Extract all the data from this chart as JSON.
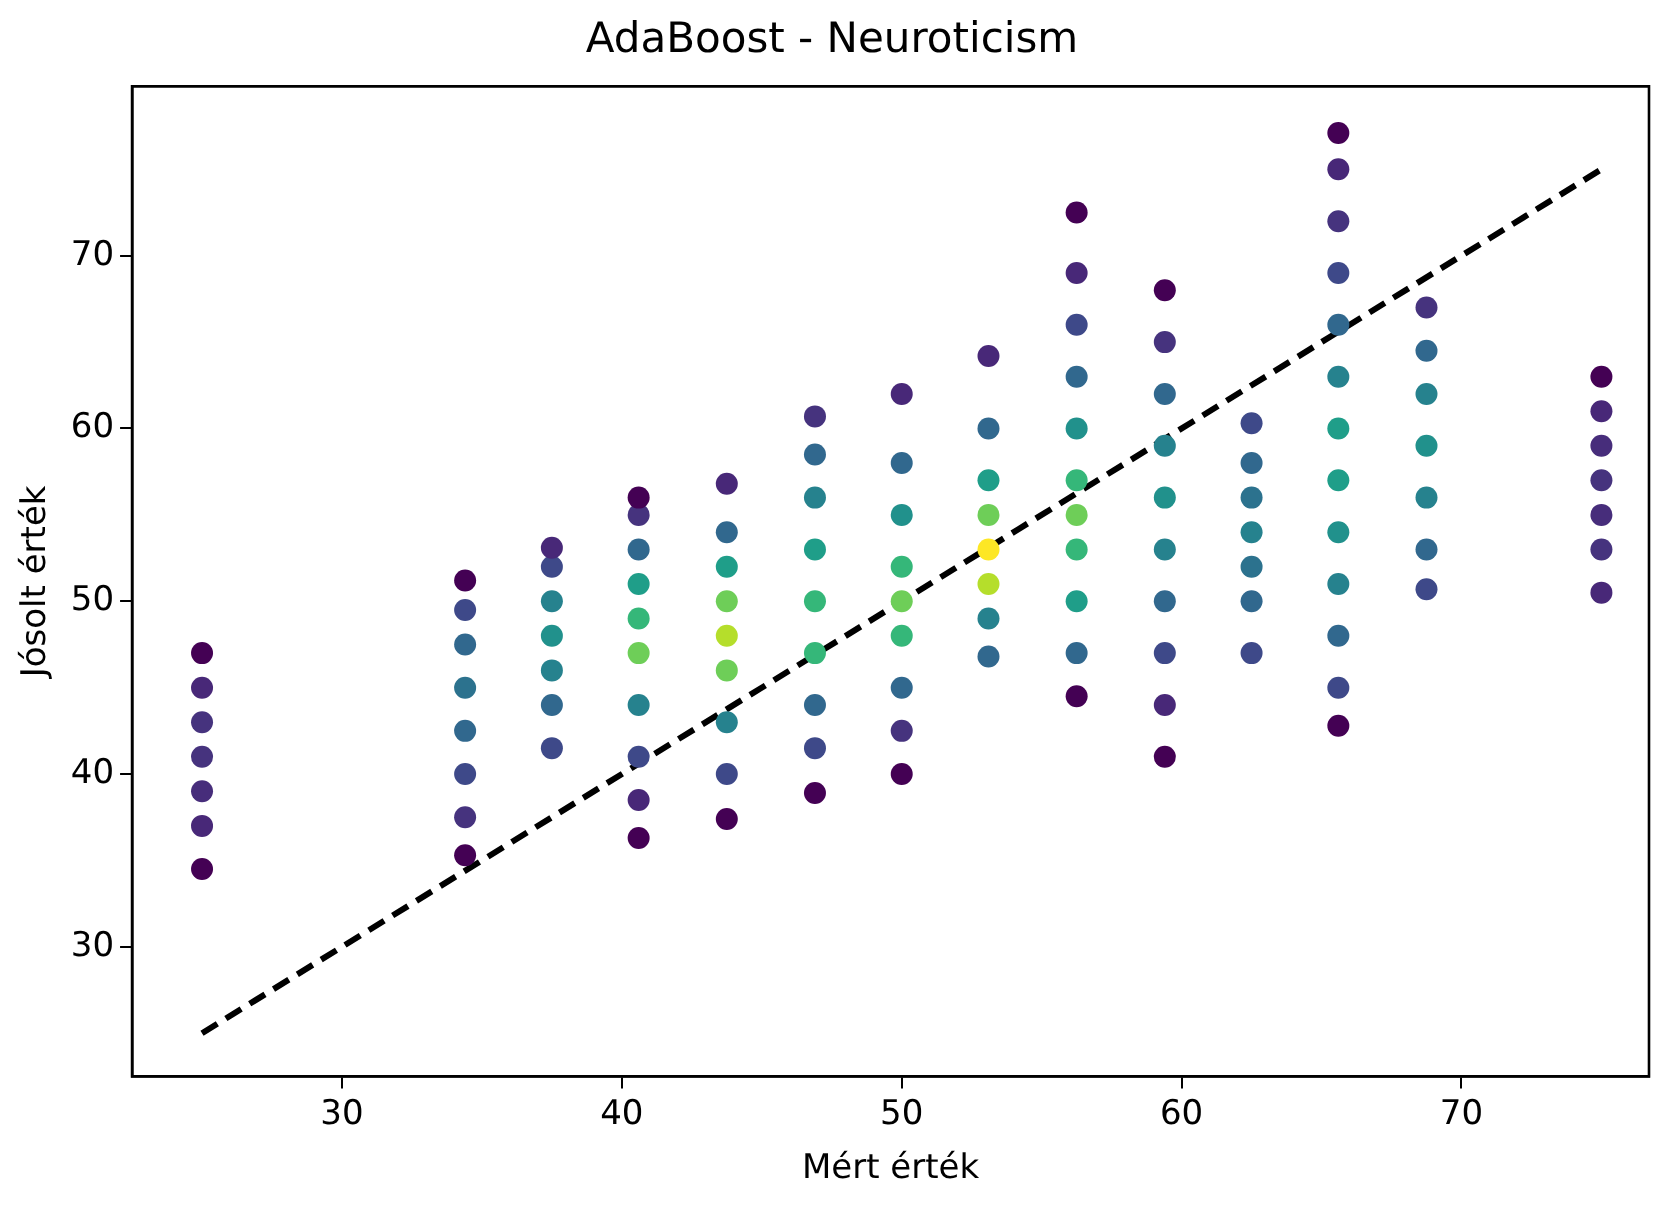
{
  "chart_data": {
    "type": "scatter",
    "title": "AdaBoost - Neuroticism",
    "xlabel": "Mért érték",
    "ylabel": "Jósolt érték",
    "xlim": [
      22.5,
      76.7
    ],
    "ylim": [
      22.5,
      79.8
    ],
    "xticks": [
      30,
      40,
      50,
      60,
      70
    ],
    "yticks": [
      30,
      40,
      50,
      60,
      70
    ],
    "grid": false,
    "legend": false,
    "marker": "circle",
    "series": [
      {
        "x": [
          25,
          25,
          25,
          25,
          25,
          25,
          25
        ],
        "values": [
          34.5,
          37,
          39,
          41,
          43,
          45,
          47
        ],
        "colors": [
          "#440154",
          "#482878",
          "#472d7b",
          "#46337e",
          "#46337e",
          "#482878",
          "#440154"
        ]
      },
      {
        "x": [
          34.4,
          34.4,
          34.4,
          34.4,
          34.4,
          34.4,
          34.4,
          34.4
        ],
        "values": [
          35.3,
          37.5,
          40,
          42.5,
          45,
          47.5,
          49.5,
          51.2
        ],
        "colors": [
          "#440154",
          "#46337e",
          "#3e4989",
          "#31688e",
          "#2c728e",
          "#31688e",
          "#3e4989",
          "#440154"
        ]
      },
      {
        "x": [
          37.5,
          37.5,
          37.5,
          37.5,
          37.5,
          37.5,
          37.5
        ],
        "values": [
          41.5,
          44,
          46,
          48,
          50,
          52,
          53.1
        ],
        "colors": [
          "#3e4989",
          "#31688e",
          "#26828e",
          "#21918c",
          "#26828e",
          "#3e4989",
          "#482878"
        ]
      },
      {
        "x": [
          40.6,
          40.6,
          40.6,
          40.6,
          40.6,
          40.6,
          40.6,
          40.6,
          40.6,
          40.6
        ],
        "values": [
          36.3,
          38.5,
          41,
          44,
          47,
          49,
          51,
          53,
          55,
          56
        ],
        "colors": [
          "#440154",
          "#482878",
          "#3e4989",
          "#26828e",
          "#6ece58",
          "#35b779",
          "#1f9e89",
          "#31688e",
          "#46337e",
          "#440154"
        ]
      },
      {
        "x": [
          43.75,
          43.75,
          43.75,
          43.75,
          43.75,
          43.75,
          43.75,
          43.75,
          43.75
        ],
        "values": [
          37.4,
          40,
          43,
          46,
          48,
          50,
          52,
          54,
          56.8
        ],
        "colors": [
          "#440154",
          "#3e4989",
          "#26828e",
          "#6ece58",
          "#b5de2b",
          "#6ece58",
          "#1f9e89",
          "#31688e",
          "#482878"
        ]
      },
      {
        "x": [
          46.9,
          46.9,
          46.9,
          46.9,
          46.9,
          46.9,
          46.9,
          46.9,
          46.9
        ],
        "values": [
          38.9,
          41.5,
          44,
          47,
          50,
          53,
          56,
          58.5,
          60.7
        ],
        "colors": [
          "#440154",
          "#3e4989",
          "#31688e",
          "#35b779",
          "#35b779",
          "#1f9e89",
          "#26828e",
          "#31688e",
          "#46337e"
        ]
      },
      {
        "x": [
          50,
          50,
          50,
          50,
          50,
          50,
          50,
          50,
          50
        ],
        "values": [
          40,
          42.5,
          45,
          48,
          50,
          52,
          55,
          58,
          62
        ],
        "colors": [
          "#440154",
          "#46337e",
          "#31688e",
          "#35b779",
          "#6ece58",
          "#35b779",
          "#21918c",
          "#31688e",
          "#482878"
        ]
      },
      {
        "x": [
          53.1,
          53.1,
          53.1,
          53.1,
          53.1,
          53.1,
          53.1,
          53.1
        ],
        "values": [
          46.8,
          49,
          51,
          53,
          55,
          57,
          60,
          64.2
        ],
        "colors": [
          "#31688e",
          "#26828e",
          "#b5de2b",
          "#fde725",
          "#6ece58",
          "#1f9e89",
          "#31688e",
          "#482878"
        ]
      },
      {
        "x": [
          56.25,
          56.25,
          56.25,
          56.25,
          56.25,
          56.25,
          56.25,
          56.25,
          56.25,
          56.25,
          56.25
        ],
        "values": [
          44.5,
          47,
          50,
          53,
          55,
          57,
          60,
          63,
          66,
          69,
          72.5
        ],
        "colors": [
          "#440154",
          "#31688e",
          "#1f9e89",
          "#35b779",
          "#6ece58",
          "#35b779",
          "#21918c",
          "#31688e",
          "#3e4989",
          "#482878",
          "#440154"
        ]
      },
      {
        "x": [
          59.4,
          59.4,
          59.4,
          59.4,
          59.4,
          59.4,
          59.4,
          59.4,
          59.4,
          59.4
        ],
        "values": [
          41,
          44,
          47,
          50,
          53,
          56,
          59,
          62,
          65,
          68
        ],
        "colors": [
          "#440154",
          "#482878",
          "#3e4989",
          "#31688e",
          "#26828e",
          "#21918c",
          "#26828e",
          "#31688e",
          "#46337e",
          "#440154"
        ]
      },
      {
        "x": [
          62.5,
          62.5,
          62.5,
          62.5,
          62.5,
          62.5,
          62.5
        ],
        "values": [
          47,
          50,
          52,
          54,
          56,
          58,
          60.3
        ],
        "colors": [
          "#3e4989",
          "#31688e",
          "#2c728e",
          "#26828e",
          "#2c728e",
          "#31688e",
          "#3e4989"
        ]
      },
      {
        "x": [
          65.6,
          65.6,
          65.6,
          65.6,
          65.6,
          65.6,
          65.6,
          65.6,
          65.6,
          65.6,
          65.6,
          65.6,
          65.6
        ],
        "values": [
          42.8,
          45,
          48,
          51,
          54,
          57,
          60,
          63,
          66,
          69,
          72,
          75,
          77.1
        ],
        "colors": [
          "#440154",
          "#3e4989",
          "#31688e",
          "#26828e",
          "#21918c",
          "#1f9e89",
          "#1f9e89",
          "#26828e",
          "#31688e",
          "#3e4989",
          "#46337e",
          "#482878",
          "#440154"
        ]
      },
      {
        "x": [
          68.75,
          68.75,
          68.75,
          68.75,
          68.75,
          68.75,
          68.75
        ],
        "values": [
          50.7,
          53,
          56,
          59,
          62,
          64.5,
          67
        ],
        "colors": [
          "#3e4989",
          "#31688e",
          "#26828e",
          "#21918c",
          "#26828e",
          "#31688e",
          "#46337e"
        ]
      },
      {
        "x": [
          75,
          75,
          75,
          75,
          75,
          75,
          75
        ],
        "values": [
          50.5,
          53,
          55,
          57,
          59,
          61,
          63
        ],
        "colors": [
          "#482878",
          "#46337e",
          "#472d7b",
          "#46337e",
          "#472d7b",
          "#482878",
          "#440154"
        ]
      },
      {
        "type": "line",
        "x": [
          25,
          75
        ],
        "values": [
          25,
          75
        ],
        "color": "#000000",
        "line_style": "dashed",
        "marker": "none"
      }
    ]
  }
}
